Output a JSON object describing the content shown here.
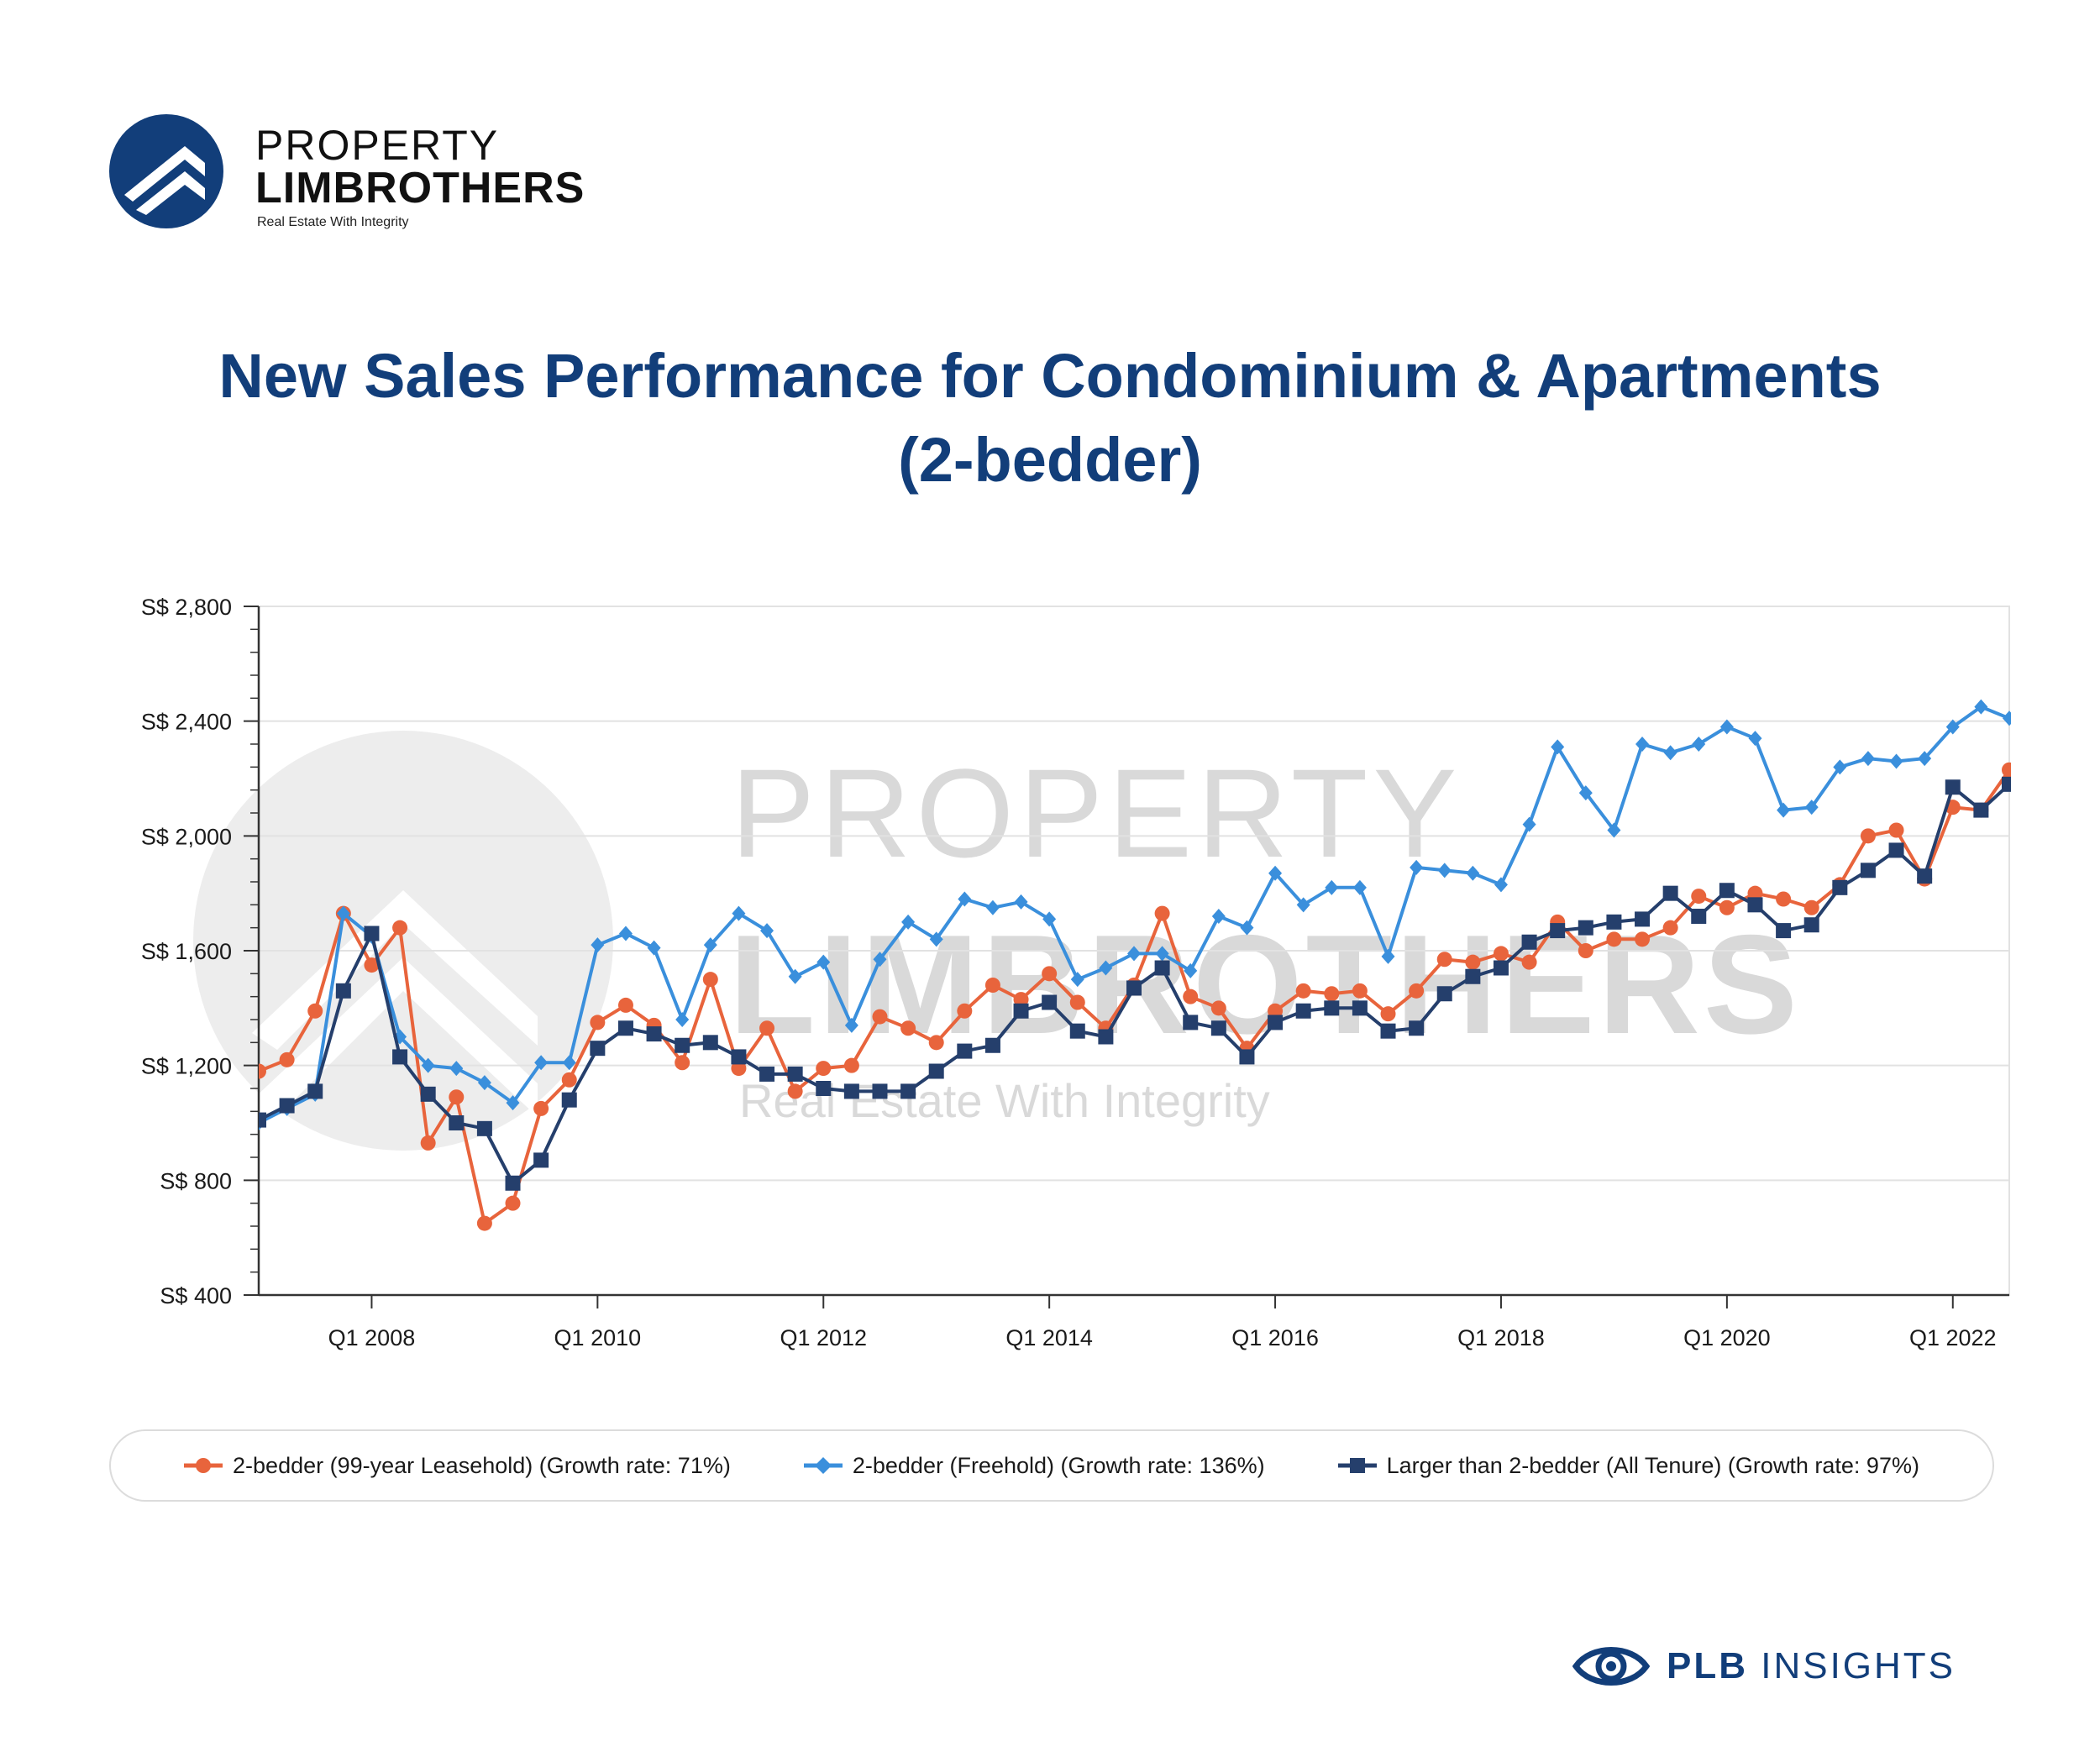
{
  "brand": {
    "line1": "PROPERTY",
    "line2": "LIMBROTHERS",
    "tagline": "Real Estate With Integrity",
    "color": "#123e7a"
  },
  "title_line1": "New Sales Performance for Condominium & Apartments",
  "title_line2": "(2-bedder)",
  "watermark": {
    "line1": "PROPERTY",
    "line2": "LIMBROTHERS",
    "line3": "Real Estate With Integrity"
  },
  "footer": {
    "strong": "PLB",
    "rest": " INSIGHTS",
    "icon": "eye-icon"
  },
  "chart_data": {
    "type": "line",
    "title": "New Sales Performance for Condominium & Apartments (2-bedder)",
    "xlabel": "",
    "ylabel": "",
    "ylim": [
      400,
      2800
    ],
    "y_ticks": [
      400,
      800,
      1200,
      1600,
      2000,
      2400,
      2800
    ],
    "y_tick_labels": [
      "S$ 400",
      "S$ 800",
      "S$ 1,200",
      "S$ 1,600",
      "S$ 2,000",
      "S$ 2,400",
      "S$ 2,800"
    ],
    "x_tick_labels": [
      "Q1 2008",
      "Q1 2010",
      "Q1 2012",
      "Q1 2014",
      "Q1 2016",
      "Q1 2018",
      "Q1 2020",
      "Q1 2022"
    ],
    "x_tick_quarter_index": [
      4,
      12,
      20,
      28,
      36,
      44,
      52,
      60
    ],
    "x_start": "Q1 2007",
    "x_end": "Q2 2022",
    "grid": true,
    "legend_position": "bottom",
    "series": [
      {
        "name": "2-bedder (99-year Leasehold) (Growth rate: 71%)",
        "color": "#e8643c",
        "marker": "circle",
        "values": [
          1180,
          1220,
          1390,
          1730,
          1550,
          1680,
          930,
          1090,
          650,
          720,
          1050,
          1150,
          1350,
          1410,
          1340,
          1210,
          1500,
          1190,
          1330,
          1110,
          1190,
          1200,
          1370,
          1330,
          1280,
          1390,
          1480,
          1430,
          1520,
          1420,
          1330,
          1480,
          1730,
          1440,
          1400,
          1260,
          1390,
          1460,
          1450,
          1460,
          1380,
          1460,
          1570,
          1560,
          1590,
          1560,
          1700,
          1600,
          1640,
          1640,
          1680,
          1790,
          1750,
          1800,
          1780,
          1750,
          1830,
          2000,
          2020,
          1850,
          2100,
          2090,
          2230
        ]
      },
      {
        "name": "2-bedder (Freehold) (Growth rate: 136%)",
        "color": "#3a8fdc",
        "marker": "diamond",
        "values": [
          1000,
          1050,
          1100,
          1730,
          1650,
          1300,
          1200,
          1190,
          1140,
          1070,
          1210,
          1210,
          1620,
          1660,
          1610,
          1360,
          1620,
          1730,
          1670,
          1510,
          1560,
          1340,
          1570,
          1700,
          1640,
          1780,
          1750,
          1770,
          1710,
          1500,
          1540,
          1590,
          1590,
          1530,
          1720,
          1680,
          1870,
          1760,
          1820,
          1820,
          1580,
          1890,
          1880,
          1870,
          1830,
          2040,
          2310,
          2150,
          2020,
          2320,
          2290,
          2320,
          2380,
          2340,
          2090,
          2100,
          2240,
          2270,
          2260,
          2270,
          2380,
          2450,
          2410
        ]
      },
      {
        "name": "Larger than 2-bedder (All Tenure) (Growth rate: 97%)",
        "color": "#253f6c",
        "marker": "square",
        "values": [
          1010,
          1060,
          1110,
          1460,
          1660,
          1230,
          1100,
          1000,
          980,
          790,
          870,
          1080,
          1260,
          1330,
          1310,
          1270,
          1280,
          1230,
          1170,
          1170,
          1120,
          1110,
          1110,
          1110,
          1180,
          1250,
          1270,
          1390,
          1420,
          1320,
          1300,
          1470,
          1540,
          1350,
          1330,
          1230,
          1350,
          1390,
          1400,
          1400,
          1320,
          1330,
          1450,
          1510,
          1540,
          1630,
          1670,
          1680,
          1700,
          1710,
          1800,
          1720,
          1810,
          1760,
          1670,
          1690,
          1820,
          1880,
          1950,
          1860,
          2170,
          2090,
          2180
        ]
      }
    ]
  }
}
